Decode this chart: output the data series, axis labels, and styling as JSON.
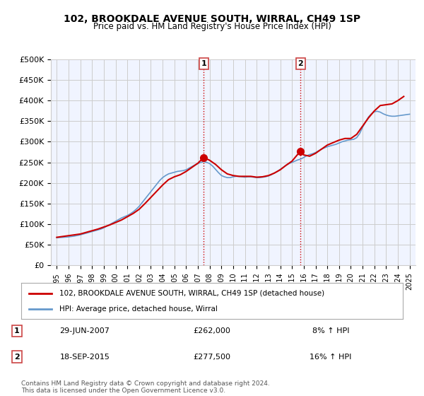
{
  "title": "102, BROOKDALE AVENUE SOUTH, WIRRAL, CH49 1SP",
  "subtitle": "Price paid vs. HM Land Registry's House Price Index (HPI)",
  "xlabel": "",
  "ylabel": "",
  "ylim": [
    0,
    500000
  ],
  "yticks": [
    0,
    50000,
    100000,
    150000,
    200000,
    250000,
    300000,
    350000,
    400000,
    450000,
    500000
  ],
  "ytick_labels": [
    "£0",
    "£50K",
    "£100K",
    "£150K",
    "£200K",
    "£250K",
    "£300K",
    "£350K",
    "£400K",
    "£450K",
    "£500K"
  ],
  "xlim_start": 1994.5,
  "xlim_end": 2025.5,
  "xtick_years": [
    1995,
    1996,
    1997,
    1998,
    1999,
    2000,
    2001,
    2002,
    2003,
    2004,
    2005,
    2006,
    2007,
    2008,
    2009,
    2010,
    2011,
    2012,
    2013,
    2014,
    2015,
    2016,
    2017,
    2018,
    2019,
    2020,
    2021,
    2022,
    2023,
    2024,
    2025
  ],
  "transaction1_x": 2007.49,
  "transaction1_y": 262000,
  "transaction1_label": "1",
  "transaction1_date": "29-JUN-2007",
  "transaction1_price": "£262,000",
  "transaction1_hpi": "8% ↑ HPI",
  "transaction2_x": 2015.72,
  "transaction2_y": 277500,
  "transaction2_label": "2",
  "transaction2_date": "18-SEP-2015",
  "transaction2_price": "£277,500",
  "transaction2_hpi": "16% ↑ HPI",
  "price_line_color": "#cc0000",
  "hpi_line_color": "#6699cc",
  "bg_color": "#ffffff",
  "plot_bg_color": "#f0f4ff",
  "vline_color": "#cc0000",
  "vline_style": ":",
  "grid_color": "#cccccc",
  "legend_label_price": "102, BROOKDALE AVENUE SOUTH, WIRRAL, CH49 1SP (detached house)",
  "legend_label_hpi": "HPI: Average price, detached house, Wirral",
  "footer": "Contains HM Land Registry data © Crown copyright and database right 2024.\nThis data is licensed under the Open Government Licence v3.0.",
  "hpi_data_x": [
    1995.0,
    1995.25,
    1995.5,
    1995.75,
    1996.0,
    1996.25,
    1996.5,
    1996.75,
    1997.0,
    1997.25,
    1997.5,
    1997.75,
    1998.0,
    1998.25,
    1998.5,
    1998.75,
    1999.0,
    1999.25,
    1999.5,
    1999.75,
    2000.0,
    2000.25,
    2000.5,
    2000.75,
    2001.0,
    2001.25,
    2001.5,
    2001.75,
    2002.0,
    2002.25,
    2002.5,
    2002.75,
    2003.0,
    2003.25,
    2003.5,
    2003.75,
    2004.0,
    2004.25,
    2004.5,
    2004.75,
    2005.0,
    2005.25,
    2005.5,
    2005.75,
    2006.0,
    2006.25,
    2006.5,
    2006.75,
    2007.0,
    2007.25,
    2007.5,
    2007.75,
    2008.0,
    2008.25,
    2008.5,
    2008.75,
    2009.0,
    2009.25,
    2009.5,
    2009.75,
    2010.0,
    2010.25,
    2010.5,
    2010.75,
    2011.0,
    2011.25,
    2011.5,
    2011.75,
    2012.0,
    2012.25,
    2012.5,
    2012.75,
    2013.0,
    2013.25,
    2013.5,
    2013.75,
    2014.0,
    2014.25,
    2014.5,
    2014.75,
    2015.0,
    2015.25,
    2015.5,
    2015.75,
    2016.0,
    2016.25,
    2016.5,
    2016.75,
    2017.0,
    2017.25,
    2017.5,
    2017.75,
    2018.0,
    2018.25,
    2018.5,
    2018.75,
    2019.0,
    2019.25,
    2019.5,
    2019.75,
    2020.0,
    2020.25,
    2020.5,
    2020.75,
    2021.0,
    2021.25,
    2021.5,
    2021.75,
    2022.0,
    2022.25,
    2022.5,
    2022.75,
    2023.0,
    2023.25,
    2023.5,
    2023.75,
    2024.0,
    2024.25,
    2024.5,
    2024.75,
    2025.0
  ],
  "hpi_data_y": [
    67000,
    67500,
    68000,
    68500,
    69000,
    70000,
    71000,
    72500,
    74000,
    76000,
    78000,
    80000,
    82000,
    84000,
    86000,
    88000,
    91000,
    95000,
    99000,
    103000,
    107000,
    111000,
    115000,
    118000,
    121000,
    125000,
    130000,
    136000,
    143000,
    152000,
    161000,
    170000,
    179000,
    188000,
    197000,
    206000,
    213000,
    218000,
    222000,
    224000,
    226000,
    228000,
    229000,
    230000,
    232000,
    236000,
    240000,
    244000,
    247000,
    250000,
    252000,
    250000,
    247000,
    241000,
    233000,
    225000,
    218000,
    215000,
    213000,
    213000,
    215000,
    216000,
    216000,
    215000,
    214000,
    215000,
    215000,
    214000,
    213000,
    213000,
    214000,
    215000,
    217000,
    220000,
    224000,
    228000,
    233000,
    238000,
    243000,
    247000,
    250000,
    253000,
    256000,
    258000,
    262000,
    266000,
    269000,
    271000,
    274000,
    278000,
    282000,
    285000,
    288000,
    290000,
    292000,
    294000,
    297000,
    300000,
    302000,
    304000,
    305000,
    306000,
    310000,
    320000,
    335000,
    348000,
    360000,
    368000,
    373000,
    374000,
    372000,
    368000,
    365000,
    363000,
    362000,
    362000,
    363000,
    364000,
    365000,
    366000,
    367000
  ],
  "price_data_x": [
    1995.0,
    1995.5,
    1996.0,
    1997.0,
    1997.5,
    1998.0,
    1998.5,
    1999.0,
    1999.5,
    2000.0,
    2000.5,
    2001.0,
    2001.5,
    2002.0,
    2002.5,
    2003.0,
    2003.5,
    2004.0,
    2004.5,
    2005.0,
    2005.5,
    2006.0,
    2006.5,
    2007.0,
    2007.49,
    2008.0,
    2008.5,
    2009.0,
    2009.5,
    2010.0,
    2010.5,
    2011.0,
    2011.5,
    2012.0,
    2012.5,
    2013.0,
    2013.5,
    2014.0,
    2014.5,
    2015.0,
    2015.72,
    2016.0,
    2016.5,
    2017.0,
    2017.5,
    2018.0,
    2018.5,
    2019.0,
    2019.5,
    2020.0,
    2020.5,
    2021.0,
    2021.5,
    2022.0,
    2022.5,
    2023.0,
    2023.5,
    2024.0,
    2024.5
  ],
  "price_data_y": [
    68000,
    70000,
    72000,
    76000,
    80000,
    84000,
    88000,
    93000,
    98000,
    104000,
    110000,
    118000,
    126000,
    136000,
    150000,
    165000,
    180000,
    195000,
    208000,
    215000,
    220000,
    228000,
    238000,
    248000,
    262000,
    255000,
    245000,
    232000,
    222000,
    218000,
    216000,
    216000,
    216000,
    214000,
    215000,
    218000,
    224000,
    232000,
    243000,
    253000,
    277500,
    268000,
    265000,
    272000,
    282000,
    292000,
    298000,
    304000,
    308000,
    308000,
    318000,
    338000,
    358000,
    375000,
    388000,
    390000,
    392000,
    400000,
    410000
  ]
}
